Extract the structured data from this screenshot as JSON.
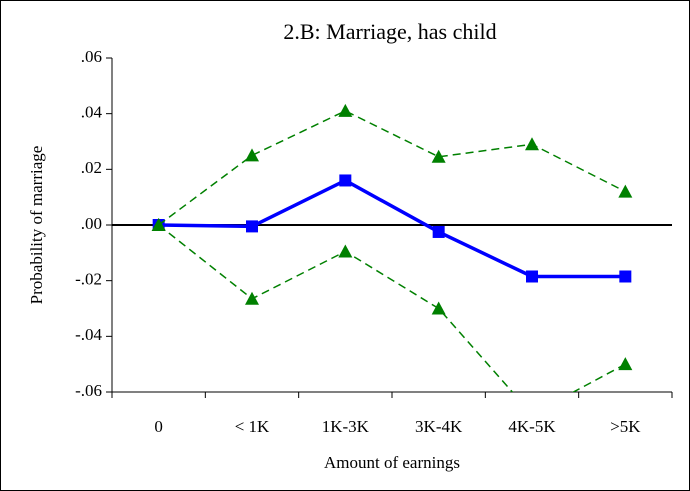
{
  "chart_data": {
    "type": "line",
    "title": "2.B: Marriage, has child",
    "ylabel": "Probability of marriage",
    "xlabel": "Amount of earnings",
    "categories": [
      "0",
      "< 1K",
      "1K-3K",
      "3K-4K",
      "4K-5K",
      ">5K"
    ],
    "series": [
      {
        "color": "#0000ff",
        "marker": "square",
        "dashed": false,
        "values": [
          0,
          -0.0005,
          0.016,
          -0.0025,
          -0.0185,
          -0.0185
        ]
      },
      {
        "color": "#008000",
        "marker": "triangle",
        "dashed": true,
        "values": [
          0,
          0.025,
          0.041,
          0.0245,
          0.029,
          0.012
        ]
      },
      {
        "color": "#008000",
        "marker": "triangle",
        "dashed": true,
        "values": [
          0,
          -0.0265,
          -0.0095,
          -0.03,
          -0.068,
          -0.05
        ]
      }
    ],
    "ylim": [
      -0.06,
      0.06
    ],
    "yticks": [
      {
        "value": -0.06,
        "label": "-.06"
      },
      {
        "value": -0.04,
        "label": "-.04"
      },
      {
        "value": -0.02,
        "label": "-.02"
      },
      {
        "value": 0,
        "label": ".00"
      },
      {
        "value": 0.02,
        "label": ".02"
      },
      {
        "value": 0.04,
        "label": ".04"
      },
      {
        "value": 0.06,
        "label": ".06"
      }
    ],
    "zero_line": true
  }
}
